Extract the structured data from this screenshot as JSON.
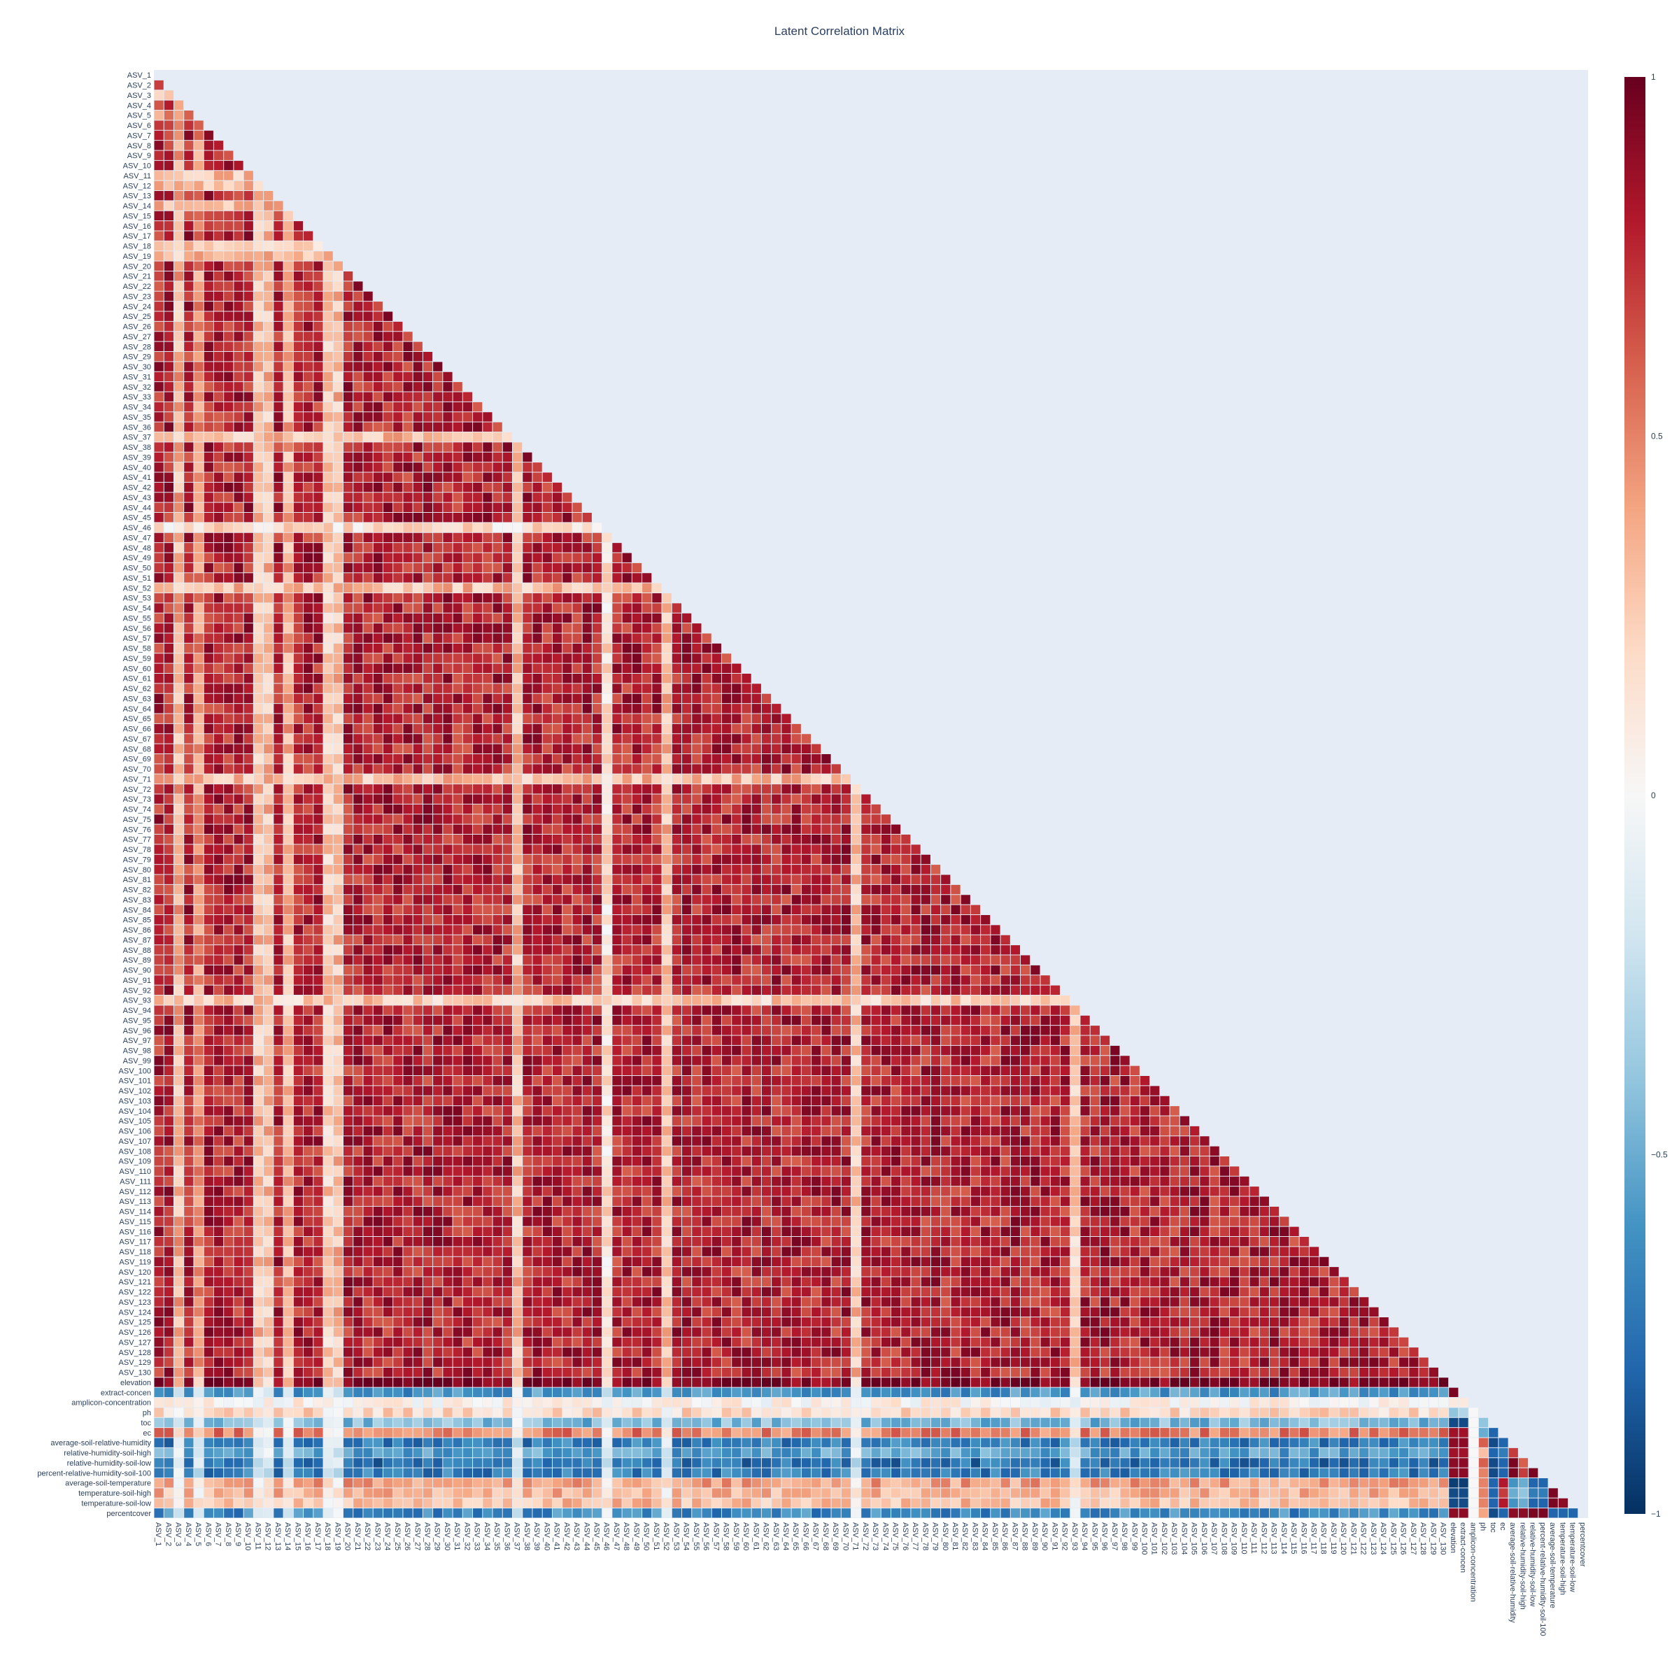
{
  "chart_data": {
    "type": "heatmap",
    "title": "Latent Correlation Matrix",
    "xlabel": "",
    "ylabel": "",
    "matrix_shape": "lower-triangle",
    "labels": [
      "ASV_1",
      "ASV_2",
      "ASV_3",
      "ASV_4",
      "ASV_5",
      "ASV_6",
      "ASV_7",
      "ASV_8",
      "ASV_9",
      "ASV_10",
      "ASV_11",
      "ASV_12",
      "ASV_13",
      "ASV_14",
      "ASV_15",
      "ASV_16",
      "ASV_17",
      "ASV_18",
      "ASV_19",
      "ASV_20",
      "ASV_21",
      "ASV_22",
      "ASV_23",
      "ASV_24",
      "ASV_25",
      "ASV_26",
      "ASV_27",
      "ASV_28",
      "ASV_29",
      "ASV_30",
      "ASV_31",
      "ASV_32",
      "ASV_33",
      "ASV_34",
      "ASV_35",
      "ASV_36",
      "ASV_37",
      "ASV_38",
      "ASV_39",
      "ASV_40",
      "ASV_41",
      "ASV_42",
      "ASV_43",
      "ASV_44",
      "ASV_45",
      "ASV_46",
      "ASV_47",
      "ASV_48",
      "ASV_49",
      "ASV_50",
      "ASV_51",
      "ASV_52",
      "ASV_53",
      "ASV_54",
      "ASV_55",
      "ASV_56",
      "ASV_57",
      "ASV_58",
      "ASV_59",
      "ASV_60",
      "ASV_61",
      "ASV_62",
      "ASV_63",
      "ASV_64",
      "ASV_65",
      "ASV_66",
      "ASV_67",
      "ASV_68",
      "ASV_69",
      "ASV_70",
      "ASV_71",
      "ASV_72",
      "ASV_73",
      "ASV_74",
      "ASV_75",
      "ASV_76",
      "ASV_77",
      "ASV_78",
      "ASV_79",
      "ASV_80",
      "ASV_81",
      "ASV_82",
      "ASV_83",
      "ASV_84",
      "ASV_85",
      "ASV_86",
      "ASV_87",
      "ASV_88",
      "ASV_89",
      "ASV_90",
      "ASV_91",
      "ASV_92",
      "ASV_93",
      "ASV_94",
      "ASV_95",
      "ASV_96",
      "ASV_97",
      "ASV_98",
      "ASV_99",
      "ASV_100",
      "ASV_101",
      "ASV_102",
      "ASV_103",
      "ASV_104",
      "ASV_105",
      "ASV_106",
      "ASV_107",
      "ASV_108",
      "ASV_109",
      "ASV_110",
      "ASV_111",
      "ASV_112",
      "ASV_113",
      "ASV_114",
      "ASV_115",
      "ASV_116",
      "ASV_117",
      "ASV_118",
      "ASV_119",
      "ASV_120",
      "ASV_121",
      "ASV_122",
      "ASV_123",
      "ASV_124",
      "ASV_125",
      "ASV_126",
      "ASV_127",
      "ASV_128",
      "ASV_129",
      "ASV_130",
      "elevation",
      "extract-concen",
      "amplicon-concentration",
      "ph",
      "toc",
      "ec",
      "average-soil-relative-humidity",
      "relative-humidity-soil-high",
      "relative-humidity-soil-low",
      "percent-relative-humidity-soil-100",
      "average-soil-temperature",
      "temperature-soil-high",
      "temperature-soil-low",
      "percentcover"
    ],
    "asv_asv_typical": 0.78,
    "weak_asv_columns": {
      "ASV_3": 0.35,
      "ASV_5": 0.45,
      "ASV_11": 0.3,
      "ASV_12": 0.3,
      "ASV_14": 0.35,
      "ASV_18": 0.25,
      "ASV_19": 0.3,
      "ASV_37": 0.3,
      "ASV_46": 0.15,
      "ASV_52": 0.3,
      "ASV_71": 0.3,
      "ASV_93": 0.25
    },
    "env_vs_asv_typical": {
      "elevation": 0.95,
      "extract-concen": -0.6,
      "amplicon-concentration": 0.05,
      "ph": 0.2,
      "toc": -0.45,
      "ec": 0.5,
      "average-soil-relative-humidity": -0.7,
      "relative-humidity-soil-high": -0.55,
      "relative-humidity-soil-low": -0.75,
      "percent-relative-humidity-soil-100": -0.7,
      "average-soil-temperature": 0.4,
      "temperature-soil-high": 0.35,
      "temperature-soil-low": 0.3,
      "percentcover": -0.65
    },
    "env_env": [
      [
        "extract-concen",
        "elevation",
        0.95
      ],
      [
        "amplicon-concentration",
        "elevation",
        0.1
      ],
      [
        "amplicon-concentration",
        "extract-concen",
        0.1
      ],
      [
        "ph",
        "elevation",
        -0.4
      ],
      [
        "ph",
        "extract-concen",
        -0.3
      ],
      [
        "ph",
        "amplicon-concentration",
        0.0
      ],
      [
        "toc",
        "elevation",
        -0.9
      ],
      [
        "toc",
        "extract-concen",
        -0.9
      ],
      [
        "toc",
        "amplicon-concentration",
        0.0
      ],
      [
        "toc",
        "ph",
        -0.4
      ],
      [
        "ec",
        "elevation",
        0.85
      ],
      [
        "ec",
        "extract-concen",
        0.85
      ],
      [
        "ec",
        "amplicon-concentration",
        0.0
      ],
      [
        "ec",
        "ph",
        -0.5
      ],
      [
        "ec",
        "toc",
        -0.8
      ],
      [
        "average-soil-relative-humidity",
        "elevation",
        0.9
      ],
      [
        "average-soil-relative-humidity",
        "extract-concen",
        0.9
      ],
      [
        "average-soil-relative-humidity",
        "amplicon-concentration",
        0.0
      ],
      [
        "average-soil-relative-humidity",
        "ph",
        0.6
      ],
      [
        "average-soil-relative-humidity",
        "toc",
        -0.9
      ],
      [
        "average-soil-relative-humidity",
        "ec",
        -0.8
      ],
      [
        "relative-humidity-soil-high",
        "elevation",
        0.85
      ],
      [
        "relative-humidity-soil-high",
        "extract-concen",
        0.85
      ],
      [
        "relative-humidity-soil-high",
        "amplicon-concentration",
        0.0
      ],
      [
        "relative-humidity-soil-high",
        "ph",
        0.3
      ],
      [
        "relative-humidity-soil-high",
        "toc",
        -0.8
      ],
      [
        "relative-humidity-soil-high",
        "ec",
        -0.7
      ],
      [
        "relative-humidity-soil-high",
        "average-soil-relative-humidity",
        0.7
      ],
      [
        "relative-humidity-soil-low",
        "elevation",
        0.9
      ],
      [
        "relative-humidity-soil-low",
        "extract-concen",
        0.9
      ],
      [
        "relative-humidity-soil-low",
        "amplicon-concentration",
        0.0
      ],
      [
        "relative-humidity-soil-low",
        "ph",
        0.6
      ],
      [
        "relative-humidity-soil-low",
        "toc",
        -0.9
      ],
      [
        "relative-humidity-soil-low",
        "ec",
        -0.8
      ],
      [
        "relative-humidity-soil-low",
        "average-soil-relative-humidity",
        0.95
      ],
      [
        "relative-humidity-soil-low",
        "relative-humidity-soil-high",
        0.6
      ],
      [
        "percent-relative-humidity-soil-100",
        "elevation",
        0.9
      ],
      [
        "percent-relative-humidity-soil-100",
        "extract-concen",
        0.9
      ],
      [
        "percent-relative-humidity-soil-100",
        "amplicon-concentration",
        0.0
      ],
      [
        "percent-relative-humidity-soil-100",
        "ph",
        0.5
      ],
      [
        "percent-relative-humidity-soil-100",
        "toc",
        -0.9
      ],
      [
        "percent-relative-humidity-soil-100",
        "ec",
        -0.8
      ],
      [
        "percent-relative-humidity-soil-100",
        "average-soil-relative-humidity",
        0.95
      ],
      [
        "percent-relative-humidity-soil-100",
        "relative-humidity-soil-high",
        0.7
      ],
      [
        "percent-relative-humidity-soil-100",
        "relative-humidity-soil-low",
        0.95
      ],
      [
        "average-soil-temperature",
        "elevation",
        -0.95
      ],
      [
        "average-soil-temperature",
        "extract-concen",
        -0.95
      ],
      [
        "average-soil-temperature",
        "amplicon-concentration",
        0.0
      ],
      [
        "average-soil-temperature",
        "ph",
        0.5
      ],
      [
        "average-soil-temperature",
        "toc",
        -0.8
      ],
      [
        "average-soil-temperature",
        "ec",
        0.8
      ],
      [
        "average-soil-temperature",
        "average-soil-relative-humidity",
        -0.6
      ],
      [
        "average-soil-temperature",
        "relative-humidity-soil-high",
        -0.5
      ],
      [
        "average-soil-temperature",
        "relative-humidity-soil-low",
        -0.8
      ],
      [
        "average-soil-temperature",
        "percent-relative-humidity-soil-100",
        -0.8
      ],
      [
        "temperature-soil-high",
        "elevation",
        -0.9
      ],
      [
        "temperature-soil-high",
        "extract-concen",
        -0.9
      ],
      [
        "temperature-soil-high",
        "amplicon-concentration",
        0.0
      ],
      [
        "temperature-soil-high",
        "ph",
        0.5
      ],
      [
        "temperature-soil-high",
        "toc",
        -0.8
      ],
      [
        "temperature-soil-high",
        "ec",
        0.7
      ],
      [
        "temperature-soil-high",
        "average-soil-relative-humidity",
        -0.5
      ],
      [
        "temperature-soil-high",
        "relative-humidity-soil-high",
        -0.4
      ],
      [
        "temperature-soil-high",
        "relative-humidity-soil-low",
        -0.7
      ],
      [
        "temperature-soil-high",
        "percent-relative-humidity-soil-100",
        -0.7
      ],
      [
        "temperature-soil-high",
        "average-soil-temperature",
        0.95
      ],
      [
        "temperature-soil-low",
        "elevation",
        -0.9
      ],
      [
        "temperature-soil-low",
        "extract-concen",
        -0.9
      ],
      [
        "temperature-soil-low",
        "amplicon-concentration",
        0.0
      ],
      [
        "temperature-soil-low",
        "ph",
        0.5
      ],
      [
        "temperature-soil-low",
        "toc",
        -0.8
      ],
      [
        "temperature-soil-low",
        "ec",
        0.8
      ],
      [
        "temperature-soil-low",
        "average-soil-relative-humidity",
        -0.6
      ],
      [
        "temperature-soil-low",
        "relative-humidity-soil-high",
        -0.5
      ],
      [
        "temperature-soil-low",
        "relative-humidity-soil-low",
        -0.8
      ],
      [
        "temperature-soil-low",
        "percent-relative-humidity-soil-100",
        -0.8
      ],
      [
        "temperature-soil-low",
        "average-soil-temperature",
        0.95
      ],
      [
        "temperature-soil-low",
        "temperature-soil-high",
        0.9
      ],
      [
        "percentcover",
        "elevation",
        0.9
      ],
      [
        "percentcover",
        "extract-concen",
        0.9
      ],
      [
        "percentcover",
        "amplicon-concentration",
        0.0
      ],
      [
        "percentcover",
        "ph",
        0.4
      ],
      [
        "percentcover",
        "toc",
        -0.9
      ],
      [
        "percentcover",
        "ec",
        -0.8
      ],
      [
        "percentcover",
        "average-soil-relative-humidity",
        0.9
      ],
      [
        "percentcover",
        "relative-humidity-soil-high",
        0.9
      ],
      [
        "percentcover",
        "relative-humidity-soil-low",
        0.95
      ],
      [
        "percentcover",
        "percent-relative-humidity-soil-100",
        0.95
      ],
      [
        "percentcover",
        "average-soil-temperature",
        -0.8
      ],
      [
        "percentcover",
        "temperature-soil-high",
        -0.8
      ],
      [
        "percentcover",
        "temperature-soil-low",
        -0.8
      ]
    ],
    "zrange": [
      -1,
      1
    ],
    "colorscale": "RdBu",
    "colorbar": {
      "ticks": [
        1,
        0.5,
        0,
        -0.5,
        -1
      ],
      "ticktext": [
        "1",
        "0.5",
        "0",
        "−0.5",
        "−1"
      ]
    },
    "grid": false,
    "plot_background": "#e5ecf6"
  }
}
